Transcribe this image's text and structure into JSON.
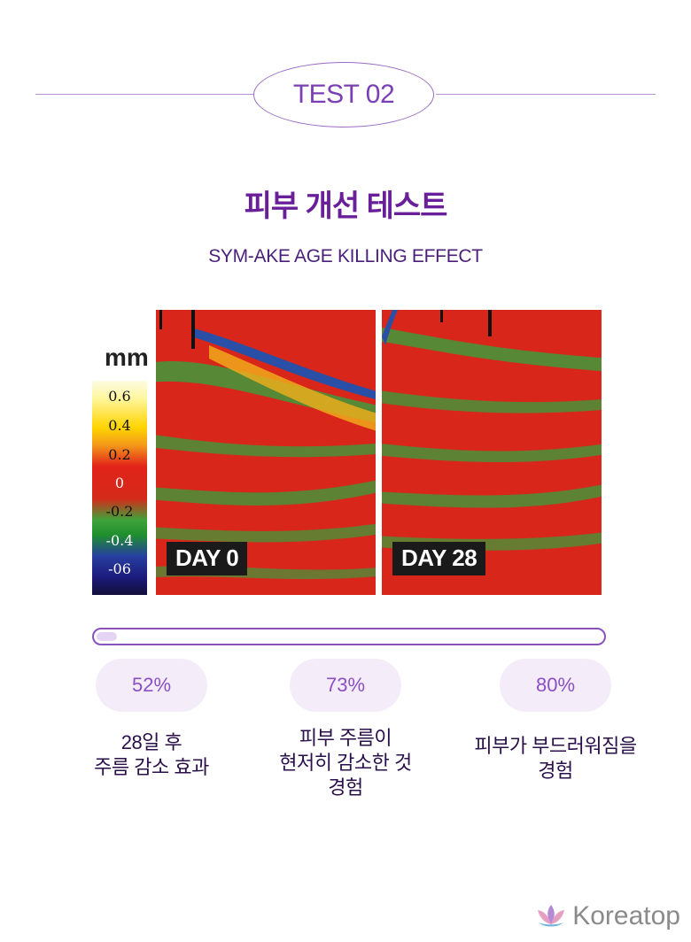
{
  "header": {
    "badge": "TEST 02"
  },
  "title": "피부 개선 테스트",
  "subtitle": "SYM-AKE AGE KILLING EFFECT",
  "colorbar": {
    "unit": "mm",
    "ticks": [
      "0.6",
      "0.4",
      "0.2",
      "0",
      "-0.2",
      "-0.4",
      "-06"
    ]
  },
  "images": [
    {
      "label": "DAY 0"
    },
    {
      "label": "DAY 28"
    }
  ],
  "progress": {
    "value": 0.04
  },
  "stats": [
    {
      "percent": "52%",
      "line1": "28일 후",
      "line2": "주름 감소 효과",
      "line3": ""
    },
    {
      "percent": "73%",
      "line1": "피부 주름이",
      "line2": "현저히 감소한 것",
      "line3": "경험"
    },
    {
      "percent": "80%",
      "line1": "피부가 부드러워짐을",
      "line2": "경험",
      "line3": ""
    }
  ],
  "brand": {
    "name": "Koreatop",
    "icon": "lotus-icon"
  },
  "colors": {
    "accent": "#7b3fb5",
    "title": "#6a1f9a",
    "pill_bg": "#f4edf9"
  }
}
